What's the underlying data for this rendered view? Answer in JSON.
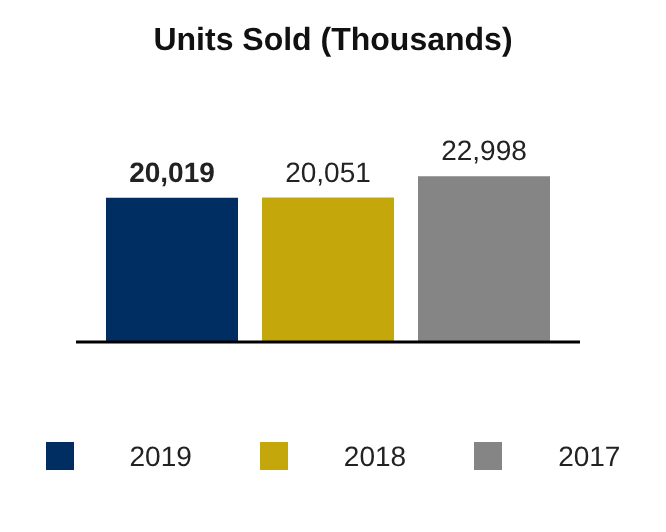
{
  "chart_data": {
    "type": "bar",
    "title": "Units Sold (Thousands)",
    "categories": [
      null
    ],
    "series": [
      {
        "name": "2019",
        "color": "#002d62",
        "values": [
          20019
        ],
        "value_labels": [
          "20,019"
        ]
      },
      {
        "name": "2018",
        "color": "#c4a70a",
        "values": [
          20051
        ],
        "value_labels": [
          "20,051"
        ]
      },
      {
        "name": "2017",
        "color": "#858585",
        "values": [
          22998
        ],
        "value_labels": [
          "22,998"
        ]
      }
    ],
    "legend": "bottom"
  }
}
